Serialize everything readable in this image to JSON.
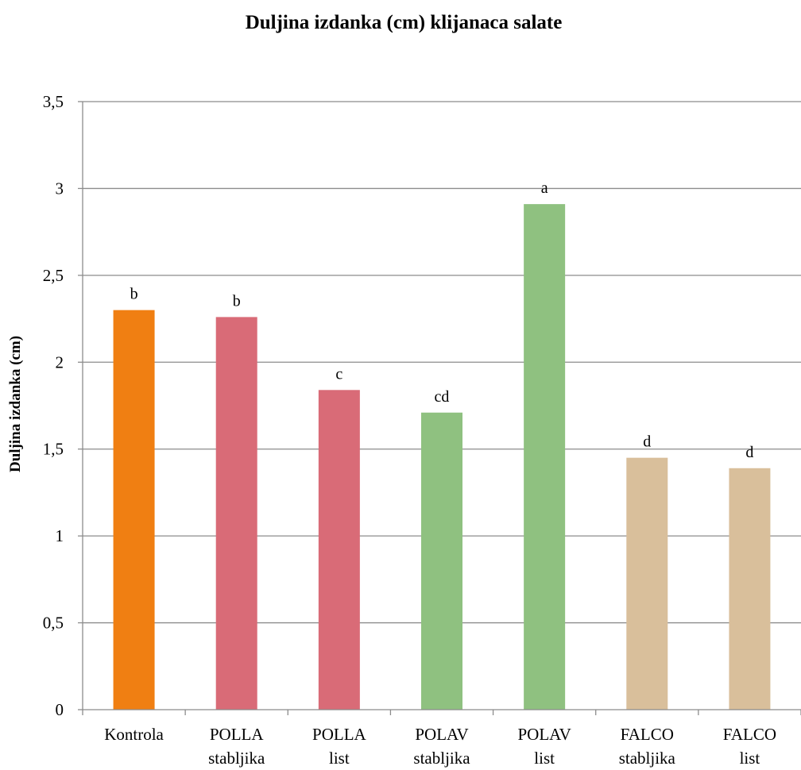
{
  "chart_data": {
    "type": "bar",
    "title": "Duljina izdanka (cm) klijanaca salate",
    "xlabel": "",
    "ylabel": "Duljina izdanka (cm)",
    "ylim": [
      0,
      3.5
    ],
    "yticks": [
      {
        "value": 0,
        "label": "0"
      },
      {
        "value": 0.5,
        "label": "0,5"
      },
      {
        "value": 1,
        "label": "1"
      },
      {
        "value": 1.5,
        "label": "1,5"
      },
      {
        "value": 2,
        "label": "2"
      },
      {
        "value": 2.5,
        "label": "2,5"
      },
      {
        "value": 3,
        "label": "3"
      },
      {
        "value": 3.5,
        "label": "3,5"
      }
    ],
    "grid": true,
    "legend": "none",
    "categories": [
      [
        "Kontrola"
      ],
      [
        "POLLA",
        "stabljika"
      ],
      [
        "POLLA",
        "list"
      ],
      [
        "POLAV",
        "stabljika"
      ],
      [
        "POLAV",
        "list"
      ],
      [
        "FALCO",
        "stabljika"
      ],
      [
        "FALCO",
        "list"
      ]
    ],
    "values": [
      2.3,
      2.26,
      1.84,
      1.71,
      2.91,
      1.45,
      1.39
    ],
    "annotations": [
      "b",
      "b",
      "c",
      "cd",
      "a",
      "d",
      "d"
    ],
    "colors": [
      "#f07f12",
      "#d96b77",
      "#d96b77",
      "#8fc180",
      "#8fc180",
      "#d9bf9b",
      "#d9bf9b"
    ]
  }
}
